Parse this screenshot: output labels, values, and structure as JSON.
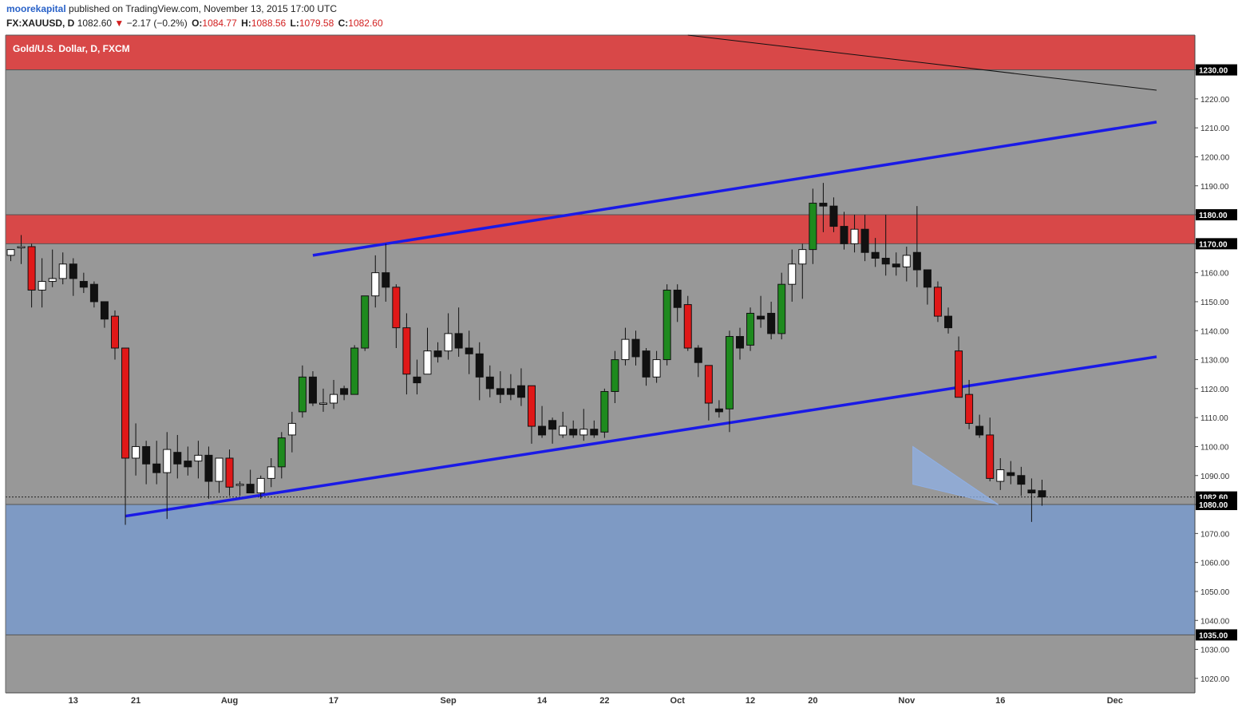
{
  "header": {
    "author": "moorekapital",
    "published": "published on TradingView.com, November 13, 2015 17:00 UTC",
    "symbol": "FX:XAUUSD, D",
    "last": "1082.60",
    "change": "−2.17 (−0.2%)",
    "open_label": "O:",
    "open": "1084.77",
    "high_label": "H:",
    "high": "1088.56",
    "low_label": "L:",
    "low": "1079.58",
    "close_label": "C:",
    "close": "1082.60"
  },
  "colors": {
    "background": "#989898",
    "bull": "#1e8a1e",
    "bear": "#e01818",
    "resistance_zone": "#d84848",
    "support_zone": "#7e9ac4",
    "trendline": "#1a1ae6",
    "wedge": "#8fb0e6"
  },
  "chart_data": {
    "type": "candlestick",
    "title": "Gold/U.S. Dollar, D, FXCM",
    "y_range": [
      1015,
      1242
    ],
    "y_ticks": [
      1020,
      1030,
      1040,
      1050,
      1060,
      1070,
      1080,
      1090,
      1100,
      1110,
      1120,
      1130,
      1140,
      1150,
      1160,
      1170,
      1180,
      1190,
      1200,
      1210,
      1220,
      1230
    ],
    "highlighted_levels": [
      {
        "value": 1230.0,
        "label": "1230.00",
        "color": "#000000"
      },
      {
        "value": 1180.0,
        "label": "1180.00",
        "color": "#000000"
      },
      {
        "value": 1170.0,
        "label": "1170.00",
        "color": "#000000"
      },
      {
        "value": 1082.6,
        "label": "1082.60",
        "color": "#000000"
      },
      {
        "value": 1080.0,
        "label": "1080.00",
        "color": "#000000"
      },
      {
        "value": 1035.0,
        "label": "1035.00",
        "color": "#000000"
      }
    ],
    "x_labels": [
      {
        "index": 6,
        "label": "13"
      },
      {
        "index": 12,
        "label": "21"
      },
      {
        "index": 21,
        "label": "Aug"
      },
      {
        "index": 31,
        "label": "17"
      },
      {
        "index": 42,
        "label": "Sep"
      },
      {
        "index": 51,
        "label": "14"
      },
      {
        "index": 57,
        "label": "22"
      },
      {
        "index": 64,
        "label": "Oct"
      },
      {
        "index": 71,
        "label": "12"
      },
      {
        "index": 77,
        "label": "20"
      },
      {
        "index": 86,
        "label": "Nov"
      },
      {
        "index": 95,
        "label": "16"
      },
      {
        "index": 106,
        "label": "Dec"
      }
    ],
    "zones": [
      {
        "from": 1230,
        "to": 1242,
        "kind": "resistance"
      },
      {
        "from": 1170,
        "to": 1180,
        "kind": "resistance"
      },
      {
        "from": 1035,
        "to": 1080,
        "kind": "support"
      }
    ],
    "trendlines": [
      {
        "x1": 29,
        "y1": 1166,
        "x2": 110,
        "y2": 1212,
        "color": "blue"
      },
      {
        "x1": 11,
        "y1": 1076,
        "x2": 110,
        "y2": 1131,
        "color": "blue"
      },
      {
        "x1": 65,
        "y1": 1242,
        "x2": 110,
        "y2": 1223,
        "color": "black"
      }
    ],
    "wedge": [
      [
        86.6,
        1100
      ],
      [
        94.8,
        1080
      ],
      [
        86.6,
        1087
      ]
    ],
    "candles": [
      {
        "o": 1166,
        "h": 1168,
        "l": 1164,
        "c": 1168
      },
      {
        "o": 1169,
        "h": 1173,
        "l": 1163,
        "c": 1169
      },
      {
        "o": 1169,
        "h": 1170,
        "l": 1148,
        "c": 1154
      },
      {
        "o": 1154,
        "h": 1165,
        "l": 1148,
        "c": 1157
      },
      {
        "o": 1157,
        "h": 1168,
        "l": 1155,
        "c": 1158
      },
      {
        "o": 1158,
        "h": 1167,
        "l": 1156,
        "c": 1163
      },
      {
        "o": 1163,
        "h": 1165,
        "l": 1152,
        "c": 1158
      },
      {
        "o": 1157,
        "h": 1160,
        "l": 1153,
        "c": 1155
      },
      {
        "o": 1156,
        "h": 1157,
        "l": 1148,
        "c": 1150
      },
      {
        "o": 1150,
        "h": 1150,
        "l": 1141,
        "c": 1144
      },
      {
        "o": 1145,
        "h": 1147,
        "l": 1130,
        "c": 1134
      },
      {
        "o": 1134,
        "h": 1134,
        "l": 1073,
        "c": 1096
      },
      {
        "o": 1096,
        "h": 1108,
        "l": 1090,
        "c": 1100
      },
      {
        "o": 1100,
        "h": 1102,
        "l": 1087,
        "c": 1094
      },
      {
        "o": 1094,
        "h": 1102,
        "l": 1087,
        "c": 1091
      },
      {
        "o": 1091,
        "h": 1105,
        "l": 1075,
        "c": 1099
      },
      {
        "o": 1098,
        "h": 1104,
        "l": 1089,
        "c": 1094
      },
      {
        "o": 1095,
        "h": 1100,
        "l": 1090,
        "c": 1093
      },
      {
        "o": 1095,
        "h": 1102,
        "l": 1089,
        "c": 1097
      },
      {
        "o": 1097,
        "h": 1100,
        "l": 1082,
        "c": 1088
      },
      {
        "o": 1088,
        "h": 1096,
        "l": 1084,
        "c": 1096
      },
      {
        "o": 1096,
        "h": 1099,
        "l": 1083,
        "c": 1086
      },
      {
        "o": 1087,
        "h": 1088,
        "l": 1083,
        "c": 1087
      },
      {
        "o": 1087,
        "h": 1092,
        "l": 1084,
        "c": 1084
      },
      {
        "o": 1084,
        "h": 1090,
        "l": 1082,
        "c": 1089
      },
      {
        "o": 1089,
        "h": 1096,
        "l": 1086,
        "c": 1093
      },
      {
        "o": 1093,
        "h": 1105,
        "l": 1089,
        "c": 1103
      },
      {
        "o": 1104,
        "h": 1112,
        "l": 1098,
        "c": 1108
      },
      {
        "o": 1112,
        "h": 1128,
        "l": 1110,
        "c": 1124
      },
      {
        "o": 1124,
        "h": 1126,
        "l": 1114,
        "c": 1115
      },
      {
        "o": 1115,
        "h": 1120,
        "l": 1112,
        "c": 1115
      },
      {
        "o": 1115,
        "h": 1123,
        "l": 1113,
        "c": 1118
      },
      {
        "o": 1120,
        "h": 1121,
        "l": 1116,
        "c": 1118
      },
      {
        "o": 1118,
        "h": 1135,
        "l": 1118,
        "c": 1134
      },
      {
        "o": 1134,
        "h": 1152,
        "l": 1133,
        "c": 1152
      },
      {
        "o": 1152,
        "h": 1166,
        "l": 1148,
        "c": 1160
      },
      {
        "o": 1160,
        "h": 1170,
        "l": 1150,
        "c": 1155
      },
      {
        "o": 1155,
        "h": 1156,
        "l": 1134,
        "c": 1141
      },
      {
        "o": 1141,
        "h": 1146,
        "l": 1118,
        "c": 1125
      },
      {
        "o": 1124,
        "h": 1130,
        "l": 1118,
        "c": 1122
      },
      {
        "o": 1125,
        "h": 1141,
        "l": 1125,
        "c": 1133
      },
      {
        "o": 1133,
        "h": 1136,
        "l": 1129,
        "c": 1131
      },
      {
        "o": 1133,
        "h": 1146,
        "l": 1130,
        "c": 1139
      },
      {
        "o": 1139,
        "h": 1148,
        "l": 1131,
        "c": 1134
      },
      {
        "o": 1134,
        "h": 1140,
        "l": 1125,
        "c": 1132
      },
      {
        "o": 1132,
        "h": 1136,
        "l": 1116,
        "c": 1124
      },
      {
        "o": 1124,
        "h": 1128,
        "l": 1117,
        "c": 1120
      },
      {
        "o": 1120,
        "h": 1126,
        "l": 1115,
        "c": 1118
      },
      {
        "o": 1120,
        "h": 1125,
        "l": 1116,
        "c": 1118
      },
      {
        "o": 1121,
        "h": 1127,
        "l": 1114,
        "c": 1117
      },
      {
        "o": 1121,
        "h": 1121,
        "l": 1101,
        "c": 1107
      },
      {
        "o": 1107,
        "h": 1114,
        "l": 1103,
        "c": 1104
      },
      {
        "o": 1109,
        "h": 1110,
        "l": 1101,
        "c": 1106
      },
      {
        "o": 1104,
        "h": 1112,
        "l": 1103,
        "c": 1107
      },
      {
        "o": 1106,
        "h": 1109,
        "l": 1103,
        "c": 1104
      },
      {
        "o": 1104,
        "h": 1113,
        "l": 1102,
        "c": 1106
      },
      {
        "o": 1106,
        "h": 1109,
        "l": 1103,
        "c": 1104
      },
      {
        "o": 1105,
        "h": 1120,
        "l": 1103,
        "c": 1119
      },
      {
        "o": 1119,
        "h": 1133,
        "l": 1115,
        "c": 1130
      },
      {
        "o": 1130,
        "h": 1141,
        "l": 1128,
        "c": 1137
      },
      {
        "o": 1137,
        "h": 1140,
        "l": 1128,
        "c": 1131
      },
      {
        "o": 1133,
        "h": 1134,
        "l": 1121,
        "c": 1124
      },
      {
        "o": 1124,
        "h": 1133,
        "l": 1122,
        "c": 1130
      },
      {
        "o": 1130,
        "h": 1156,
        "l": 1128,
        "c": 1154
      },
      {
        "o": 1154,
        "h": 1156,
        "l": 1143,
        "c": 1148
      },
      {
        "o": 1149,
        "h": 1152,
        "l": 1133,
        "c": 1134
      },
      {
        "o": 1134,
        "h": 1135,
        "l": 1124,
        "c": 1129
      },
      {
        "o": 1128,
        "h": 1128,
        "l": 1109,
        "c": 1115
      },
      {
        "o": 1113,
        "h": 1116,
        "l": 1110,
        "c": 1112
      },
      {
        "o": 1113,
        "h": 1140,
        "l": 1105,
        "c": 1138
      },
      {
        "o": 1138,
        "h": 1141,
        "l": 1130,
        "c": 1134
      },
      {
        "o": 1135,
        "h": 1148,
        "l": 1133,
        "c": 1146
      },
      {
        "o": 1145,
        "h": 1152,
        "l": 1141,
        "c": 1144
      },
      {
        "o": 1146,
        "h": 1150,
        "l": 1137,
        "c": 1139
      },
      {
        "o": 1139,
        "h": 1160,
        "l": 1137,
        "c": 1156
      },
      {
        "o": 1156,
        "h": 1168,
        "l": 1150,
        "c": 1163
      },
      {
        "o": 1163,
        "h": 1170,
        "l": 1151,
        "c": 1168
      },
      {
        "o": 1168,
        "h": 1189,
        "l": 1163,
        "c": 1184
      },
      {
        "o": 1184,
        "h": 1191,
        "l": 1174,
        "c": 1183
      },
      {
        "o": 1183,
        "h": 1186,
        "l": 1174,
        "c": 1176
      },
      {
        "o": 1176,
        "h": 1181,
        "l": 1168,
        "c": 1170
      },
      {
        "o": 1170,
        "h": 1180,
        "l": 1167,
        "c": 1175
      },
      {
        "o": 1175,
        "h": 1180,
        "l": 1164,
        "c": 1167
      },
      {
        "o": 1167,
        "h": 1172,
        "l": 1162,
        "c": 1165
      },
      {
        "o": 1165,
        "h": 1180,
        "l": 1159,
        "c": 1163
      },
      {
        "o": 1163,
        "h": 1167,
        "l": 1159,
        "c": 1162
      },
      {
        "o": 1162,
        "h": 1169,
        "l": 1157,
        "c": 1166
      },
      {
        "o": 1167,
        "h": 1183,
        "l": 1155,
        "c": 1161
      },
      {
        "o": 1161,
        "h": 1161,
        "l": 1149,
        "c": 1155
      },
      {
        "o": 1155,
        "h": 1157,
        "l": 1143,
        "c": 1145
      },
      {
        "o": 1145,
        "h": 1148,
        "l": 1139,
        "c": 1141
      },
      {
        "o": 1133,
        "h": 1138,
        "l": 1117,
        "c": 1117
      },
      {
        "o": 1118,
        "h": 1123,
        "l": 1106,
        "c": 1108
      },
      {
        "o": 1107,
        "h": 1111,
        "l": 1103,
        "c": 1104
      },
      {
        "o": 1104,
        "h": 1110,
        "l": 1088,
        "c": 1089
      },
      {
        "o": 1088,
        "h": 1096,
        "l": 1085,
        "c": 1092
      },
      {
        "o": 1091,
        "h": 1095,
        "l": 1087,
        "c": 1090
      },
      {
        "o": 1090,
        "h": 1093,
        "l": 1083,
        "c": 1087
      },
      {
        "o": 1085,
        "h": 1089,
        "l": 1074,
        "c": 1084
      },
      {
        "o": 1084.77,
        "h": 1088.56,
        "l": 1079.58,
        "c": 1082.6
      }
    ]
  }
}
